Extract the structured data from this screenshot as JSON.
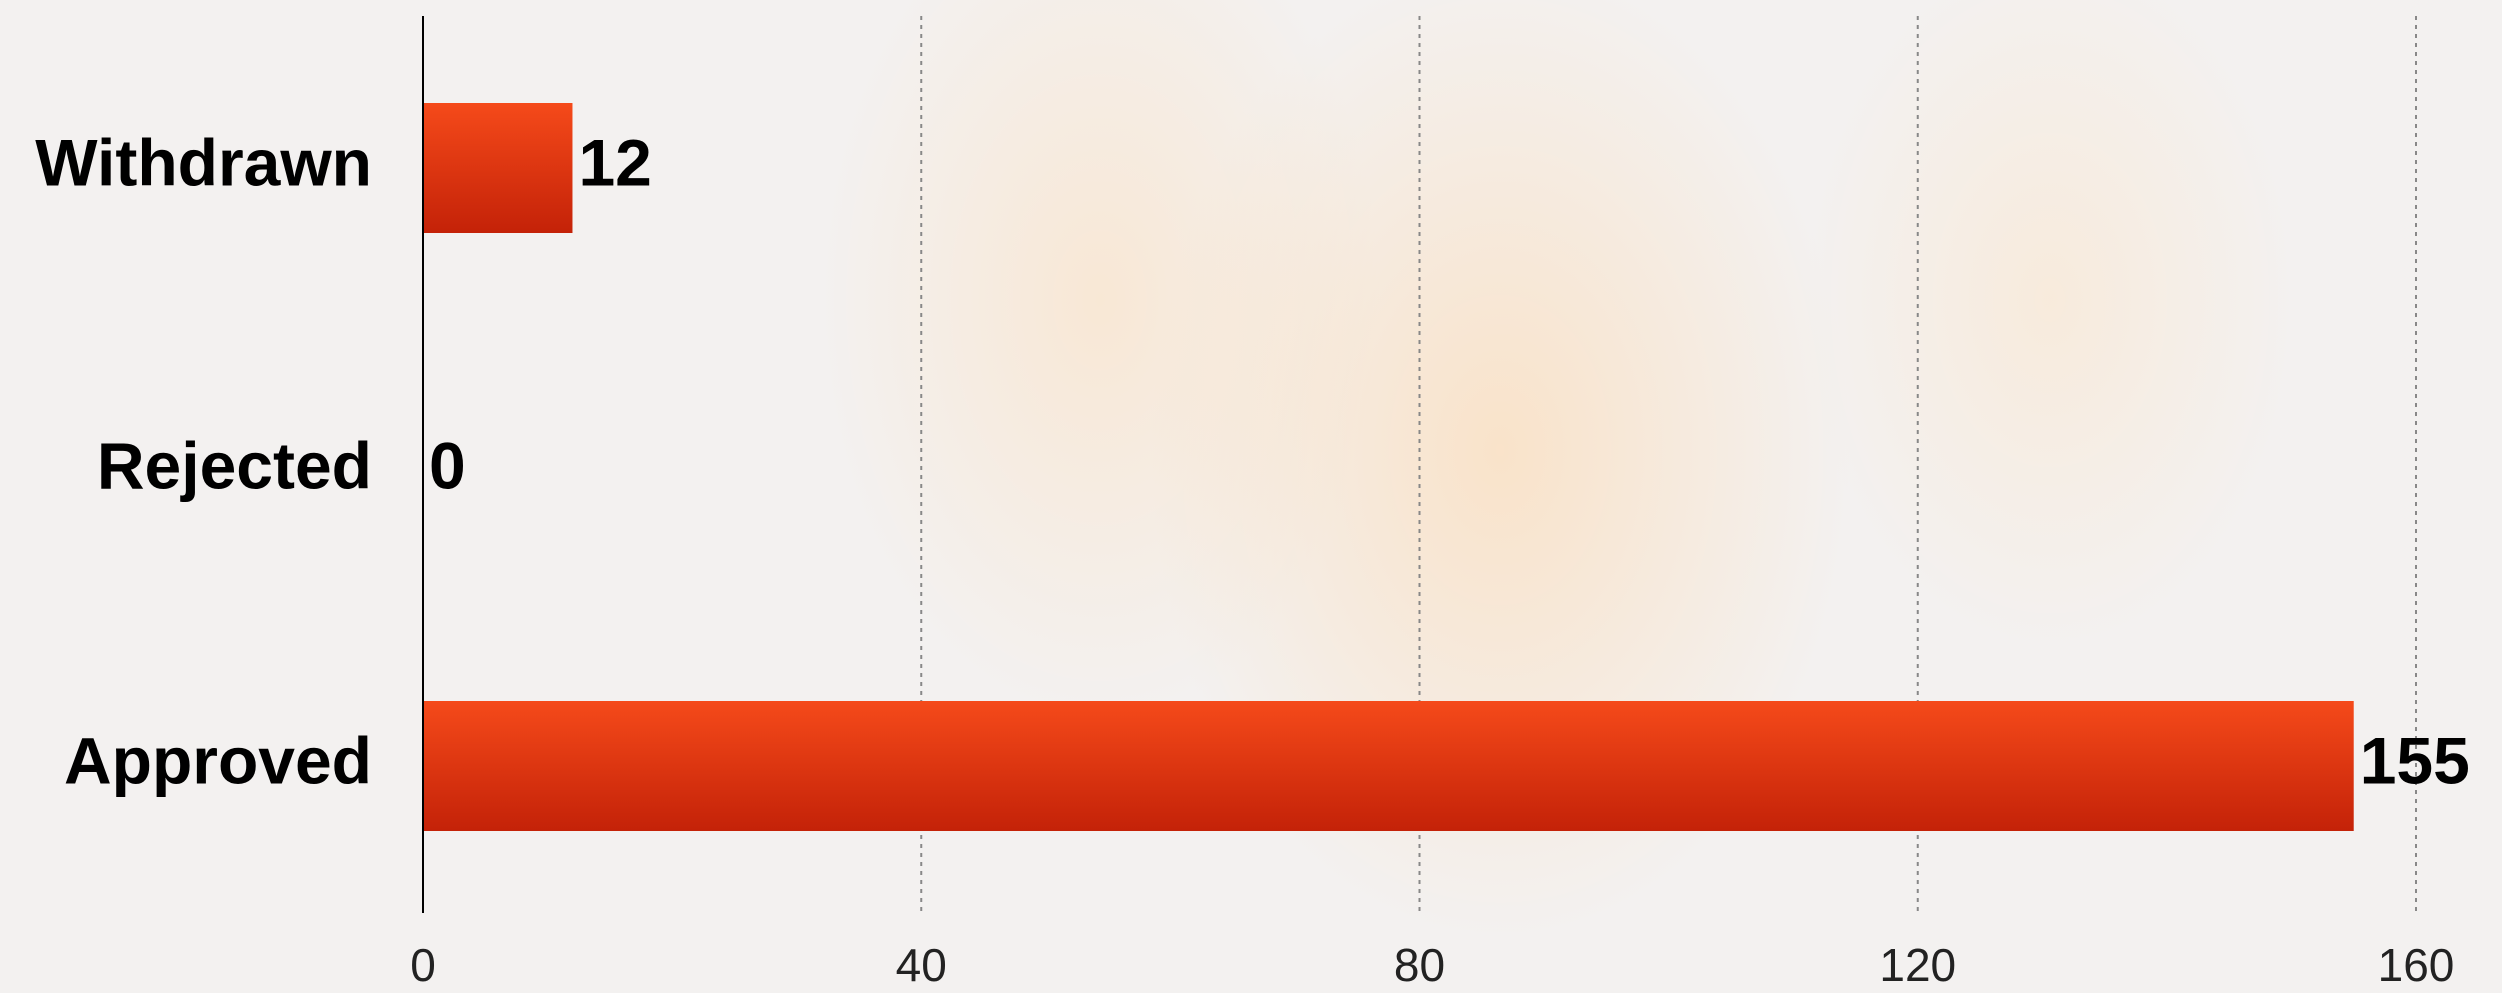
{
  "chart_data": {
    "type": "bar",
    "orientation": "horizontal",
    "categories": [
      "Withdrawn",
      "Rejected",
      "Approved"
    ],
    "values": [
      12,
      0,
      155
    ],
    "color": "#f54a1a",
    "xlim": [
      0,
      160
    ],
    "xticks": [
      0,
      40,
      80,
      120,
      160
    ],
    "grid": true
  }
}
